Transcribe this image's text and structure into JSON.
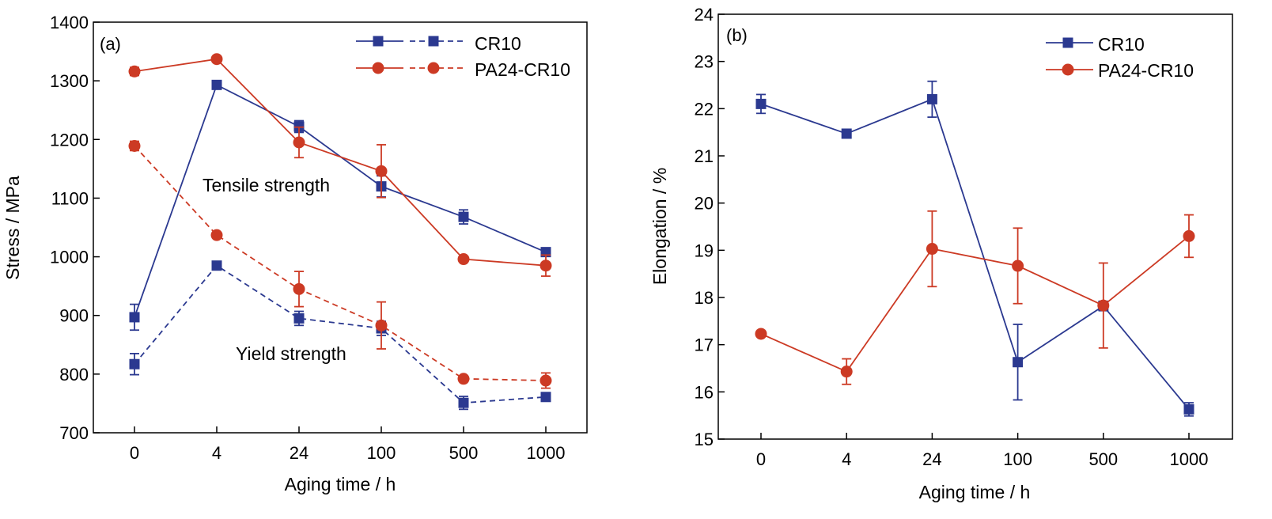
{
  "chart_data": [
    {
      "type": "line",
      "panel_label": "(a)",
      "xlabel": "Aging time / h",
      "ylabel": "Stress / MPa",
      "categories": [
        "0",
        "4",
        "24",
        "100",
        "500",
        "1000"
      ],
      "ylim": [
        700,
        1400
      ],
      "yticks": [
        700,
        800,
        900,
        1000,
        1100,
        1200,
        1300,
        1400
      ],
      "legend_position": "top-right",
      "legend": [
        {
          "name": "CR10",
          "color": "#2b3990",
          "marker": "square"
        },
        {
          "name": "PA24-CR10",
          "color": "#cc3a24",
          "marker": "circle"
        }
      ],
      "series": [
        {
          "group": "CR10",
          "property": "Tensile strength",
          "style": "solid",
          "color": "#2b3990",
          "marker": "square",
          "values": [
            897,
            1293,
            1222,
            1120,
            1068,
            1008
          ],
          "errors": [
            22,
            0,
            10,
            18,
            12,
            5
          ]
        },
        {
          "group": "PA24-CR10",
          "property": "Tensile strength",
          "style": "solid",
          "color": "#cc3a24",
          "marker": "circle",
          "values": [
            1316,
            1337,
            1195,
            1146,
            996,
            985
          ],
          "errors": [
            7,
            5,
            26,
            45,
            0,
            18
          ]
        },
        {
          "group": "CR10",
          "property": "Yield strength",
          "style": "dashed",
          "color": "#2b3990",
          "marker": "square",
          "values": [
            817,
            985,
            895,
            878,
            751,
            761
          ],
          "errors": [
            18,
            0,
            12,
            12,
            11,
            5
          ]
        },
        {
          "group": "PA24-CR10",
          "property": "Yield strength",
          "style": "dashed",
          "color": "#cc3a24",
          "marker": "circle",
          "values": [
            1189,
            1037,
            945,
            883,
            792,
            789
          ],
          "errors": [
            8,
            0,
            30,
            40,
            0,
            13
          ]
        }
      ],
      "annotations": [
        "Tensile strength",
        "Yield strength"
      ]
    },
    {
      "type": "line",
      "panel_label": "(b)",
      "xlabel": "Aging time / h",
      "ylabel": "Elongation / %",
      "categories": [
        "0",
        "4",
        "24",
        "100",
        "500",
        "1000"
      ],
      "ylim": [
        15,
        24
      ],
      "yticks": [
        15,
        16,
        17,
        18,
        19,
        20,
        21,
        22,
        23,
        24
      ],
      "legend_position": "top-right",
      "legend": [
        {
          "name": "CR10",
          "color": "#2b3990",
          "marker": "square"
        },
        {
          "name": "PA24-CR10",
          "color": "#cc3a24",
          "marker": "circle"
        }
      ],
      "series": [
        {
          "group": "CR10",
          "style": "solid",
          "color": "#2b3990",
          "marker": "square",
          "values": [
            22.1,
            21.47,
            22.2,
            16.63,
            17.82,
            15.63
          ],
          "errors": [
            0.2,
            0,
            0.38,
            0.8,
            0.1,
            0.14
          ]
        },
        {
          "group": "PA24-CR10",
          "style": "solid",
          "color": "#cc3a24",
          "marker": "circle",
          "values": [
            17.23,
            16.43,
            19.03,
            18.67,
            17.83,
            19.3
          ],
          "errors": [
            0,
            0.27,
            0.8,
            0.8,
            0.9,
            0.45
          ]
        }
      ]
    }
  ]
}
